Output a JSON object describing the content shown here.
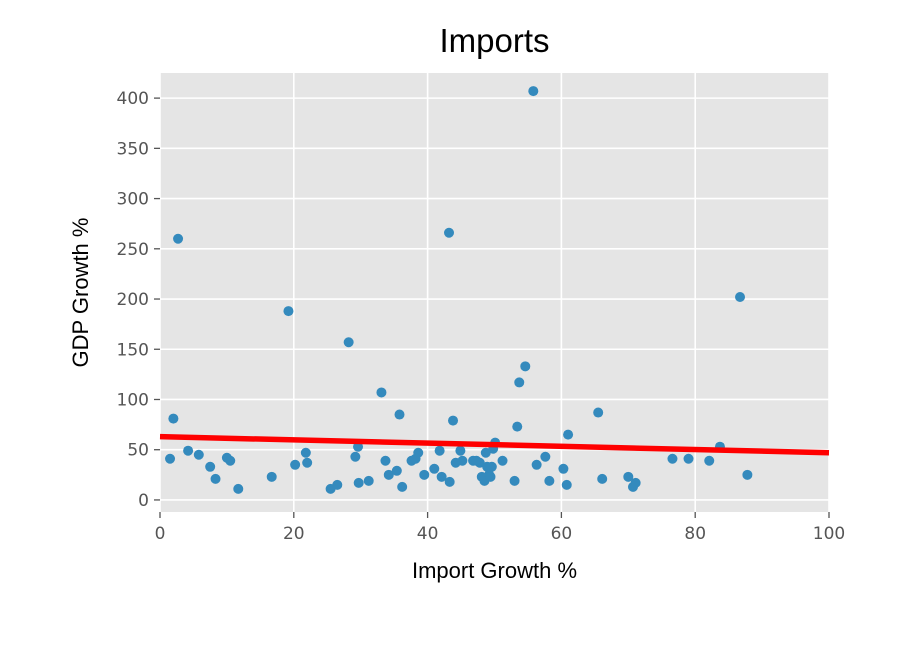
{
  "chart_data": {
    "type": "scatter",
    "title": "Imports",
    "xlabel": "Import Growth %",
    "ylabel": "GDP Growth %",
    "xlim": [
      0,
      100
    ],
    "ylim": [
      -12,
      425
    ],
    "xticks": [
      0,
      20,
      40,
      60,
      80,
      100
    ],
    "yticks": [
      0,
      50,
      100,
      150,
      200,
      250,
      300,
      350,
      400
    ],
    "grid": true,
    "background_color": "#e5e5e5",
    "grid_color": "#ffffff",
    "point_color": "#348abd",
    "trend_color": "#ff0000",
    "trend_line": {
      "x": [
        0,
        100
      ],
      "y": [
        63,
        47
      ]
    },
    "series": [
      {
        "x": [
          1.5,
          2,
          2.7,
          4.2,
          5.8,
          7.5,
          8.3,
          10,
          10.5,
          11.7,
          16.7,
          19.2,
          20.2,
          21.8,
          22,
          25.5,
          26.5,
          28.2,
          29.2,
          29.6,
          29.7,
          31.2,
          33.1,
          33.7,
          34.2,
          35.4,
          35.8,
          36.2,
          37.6,
          38.2,
          38.6,
          39.5,
          41,
          41.8,
          42.1,
          43.2,
          43.3,
          43.8,
          44.2,
          44.9,
          45.2,
          46.8,
          47.3,
          47.8,
          48.1,
          48.5,
          48.7,
          48.9,
          49.2,
          49.4,
          49.6,
          49.8,
          50.1,
          51.2,
          53,
          53.4,
          53.7,
          54.6,
          55.8,
          56.3,
          57.6,
          58.2,
          60.3,
          60.8,
          61,
          65.5,
          66.1,
          70,
          70.7,
          71.1,
          76.6,
          79,
          82.1,
          83.7,
          86.7,
          87.8
        ],
        "y": [
          41,
          81,
          260,
          49,
          45,
          33,
          21,
          42,
          39,
          11,
          23,
          188,
          35,
          47,
          37,
          11,
          15,
          157,
          43,
          53,
          17,
          19,
          107,
          39,
          25,
          29,
          85,
          13,
          39,
          41,
          47,
          25,
          31,
          49,
          23,
          266,
          18,
          79,
          37,
          49,
          39,
          39,
          39,
          37,
          23,
          19,
          47,
          33,
          25,
          23,
          33,
          51,
          57,
          39,
          19,
          73,
          117,
          133,
          407,
          35,
          43,
          19,
          31,
          15,
          65,
          87,
          21,
          23,
          13,
          17,
          41,
          41,
          39,
          53,
          202,
          25
        ]
      }
    ]
  }
}
